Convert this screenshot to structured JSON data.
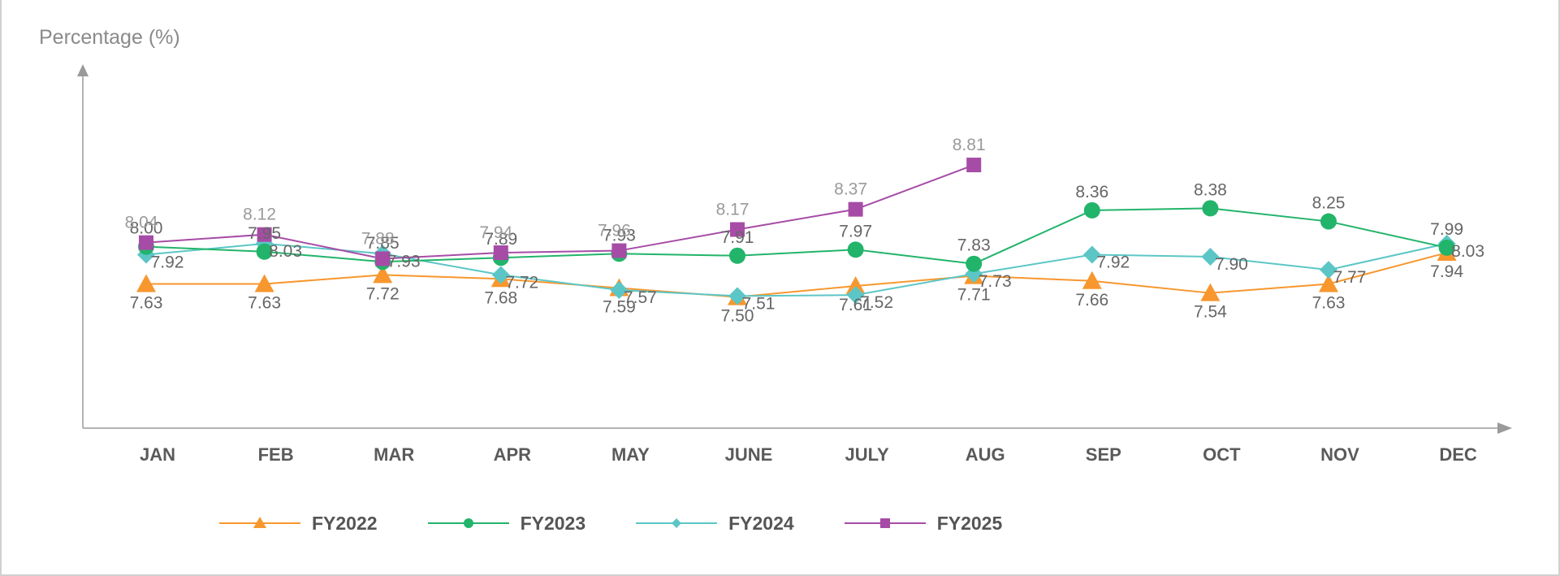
{
  "chart_data": {
    "type": "line",
    "ylabel": "Percentage (%)",
    "xlabel": "",
    "categories": [
      "JAN",
      "FEB",
      "MAR",
      "APR",
      "MAY",
      "JUNE",
      "JULY",
      "AUG",
      "SEP",
      "OCT",
      "NOV",
      "DEC"
    ],
    "ylim": [
      6.2,
      9.6
    ],
    "grid": false,
    "legend_position": "bottom",
    "series": [
      {
        "name": "FY2022",
        "color": "#f7972e",
        "marker": "triangle",
        "values": [
          7.63,
          7.63,
          7.72,
          7.68,
          7.59,
          7.5,
          7.61,
          7.71,
          7.66,
          7.54,
          7.63,
          7.94
        ]
      },
      {
        "name": "FY2023",
        "color": "#22b46a",
        "marker": "circle",
        "values": [
          8.0,
          7.95,
          7.85,
          7.89,
          7.93,
          7.91,
          7.97,
          7.83,
          8.36,
          8.38,
          8.25,
          7.99
        ]
      },
      {
        "name": "FY2024",
        "color": "#5cc6c6",
        "marker": "diamond",
        "values": [
          7.92,
          8.03,
          7.93,
          7.72,
          7.57,
          7.51,
          7.52,
          7.73,
          7.92,
          7.9,
          7.77,
          8.03
        ]
      },
      {
        "name": "FY2025",
        "color": "#a64ca6",
        "marker": "square",
        "values": [
          8.04,
          8.12,
          7.88,
          7.94,
          7.96,
          8.17,
          8.37,
          8.81,
          null,
          null,
          null,
          null
        ]
      }
    ]
  }
}
